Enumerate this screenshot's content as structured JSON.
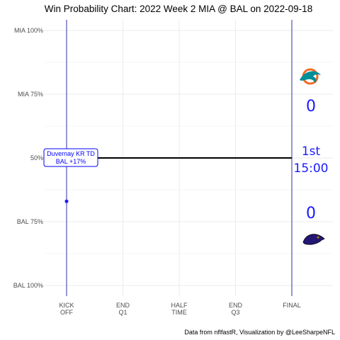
{
  "chart_data": {
    "type": "line",
    "title": "Win Probability Chart: 2022 Week 2 MIA @ BAL on 2022-09-18",
    "caption": "Data from nflfastR, Visualization by @LeeSharpeNFL",
    "x_ticks": [
      {
        "line1": "KICK",
        "line2": "OFF"
      },
      {
        "line1": "END",
        "line2": "Q1"
      },
      {
        "line1": "HALF",
        "line2": "TIME"
      },
      {
        "line1": "END",
        "line2": "Q3"
      },
      {
        "line1": "FINAL",
        "line2": ""
      }
    ],
    "y_ticks": [
      "MIA 100%",
      "MIA 75%",
      "50%",
      "BAL 75%",
      "BAL 100%"
    ],
    "y_tick_values": [
      1.0,
      0.75,
      0.5,
      0.25,
      0.0
    ],
    "ylim": [
      0,
      1
    ],
    "grid": true,
    "series": [
      {
        "x": [
          0.0,
          1.0
        ],
        "y": [
          0.5,
          0.5
        ],
        "color": "#000000"
      }
    ],
    "point": {
      "x": 0.0,
      "y": 0.33,
      "color": "#1a1aff"
    },
    "annotation": {
      "line1": "Duvernay KR TD",
      "line2": "BAL +17%"
    },
    "scoreboard": {
      "away_score": "0",
      "home_score": "0",
      "quarter": "1st",
      "clock": "15:00",
      "away_logo": "dolphin-logo",
      "home_logo": "raven-logo"
    },
    "colors": {
      "accent": "#1a1aff",
      "vline": "#2f2fa8",
      "grid": "#ebebeb",
      "away_teal": "#008e97",
      "away_orange": "#f26a24",
      "home_purple": "#241773",
      "home_gold": "#9e7c0c"
    }
  }
}
